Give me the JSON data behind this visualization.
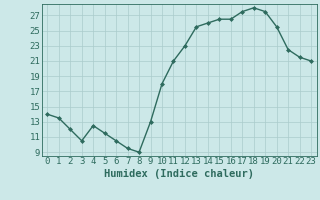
{
  "x": [
    0,
    1,
    2,
    3,
    4,
    5,
    6,
    7,
    8,
    9,
    10,
    11,
    12,
    13,
    14,
    15,
    16,
    17,
    18,
    19,
    20,
    21,
    22,
    23
  ],
  "y": [
    14,
    13.5,
    12,
    10.5,
    12.5,
    11.5,
    10.5,
    9.5,
    9,
    13,
    18,
    21,
    23,
    25.5,
    26,
    26.5,
    26.5,
    27.5,
    28,
    27.5,
    25.5,
    22.5,
    21.5,
    21
  ],
  "line_color": "#2e6b5e",
  "marker": "D",
  "marker_size": 2.0,
  "background_color": "#cce8e8",
  "grid_color": "#aacccc",
  "xlabel": "Humidex (Indice chaleur)",
  "xlabel_fontsize": 7.5,
  "xlim": [
    -0.5,
    23.5
  ],
  "ylim": [
    8.5,
    28.5
  ],
  "yticks": [
    9,
    11,
    13,
    15,
    17,
    19,
    21,
    23,
    25,
    27
  ],
  "xticks": [
    0,
    1,
    2,
    3,
    4,
    5,
    6,
    7,
    8,
    9,
    10,
    11,
    12,
    13,
    14,
    15,
    16,
    17,
    18,
    19,
    20,
    21,
    22,
    23
  ],
  "tick_color": "#2e6b5e",
  "tick_fontsize": 6.5,
  "line_width": 1.0
}
